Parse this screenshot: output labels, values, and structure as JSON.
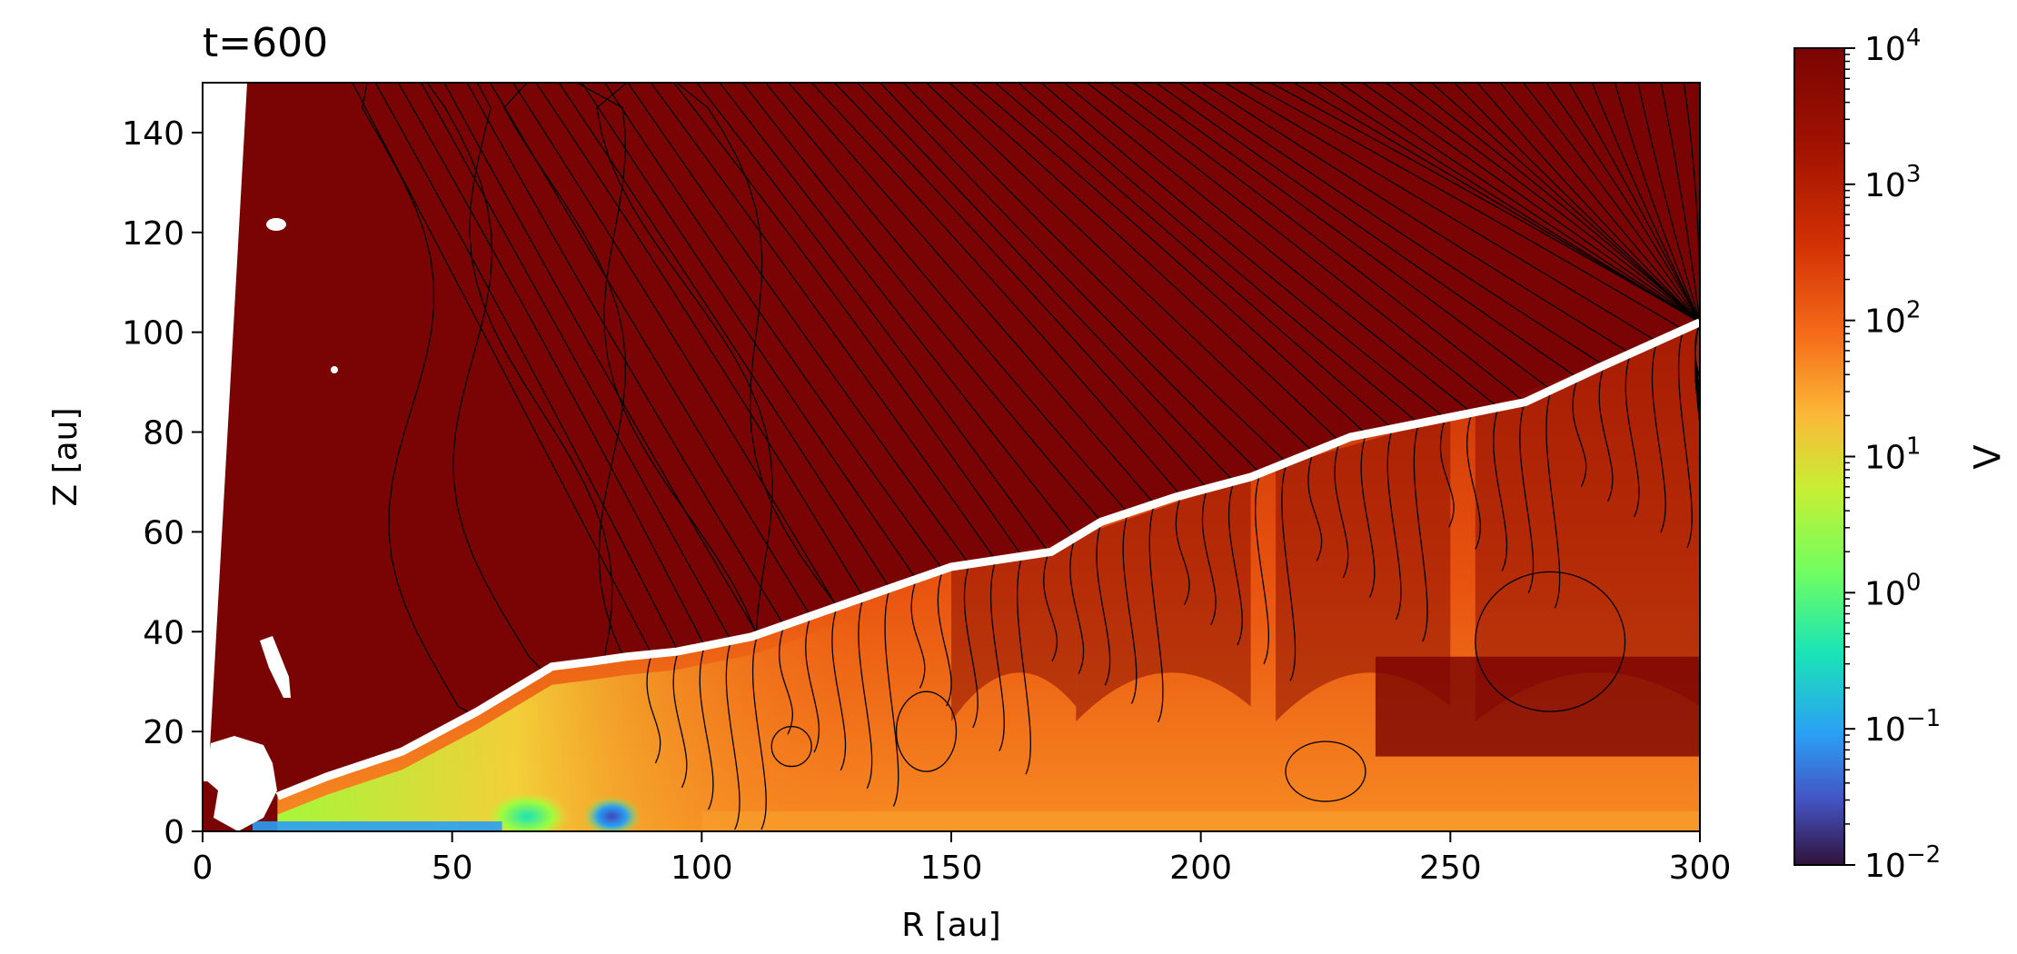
{
  "chart_data": {
    "type": "heatmap",
    "title": "t=600",
    "xlabel": "R [au]",
    "ylabel": "Z [au]",
    "xlim": [
      0,
      300
    ],
    "ylim": [
      0,
      150
    ],
    "xticks": [
      "0",
      "50",
      "100",
      "150",
      "200",
      "250",
      "300"
    ],
    "yticks": [
      "0",
      "20",
      "40",
      "60",
      "80",
      "100",
      "120",
      "140"
    ],
    "colorbar": {
      "label": "Λ",
      "scale": "log",
      "range": [
        0.01,
        10000
      ],
      "ticks": [
        {
          "base": "10",
          "exp": "4"
        },
        {
          "base": "10",
          "exp": "3"
        },
        {
          "base": "10",
          "exp": "2"
        },
        {
          "base": "10",
          "exp": "1"
        },
        {
          "base": "10",
          "exp": "0"
        },
        {
          "base": "10",
          "exp": "−1"
        },
        {
          "base": "10",
          "exp": "−2"
        }
      ],
      "colormap": "turbo"
    },
    "background_color": "#7a0403",
    "contour_color": "#000000",
    "white_boundary": {
      "description": "white band separating upper region from disk surface",
      "r": [
        15,
        25,
        40,
        55,
        70,
        78,
        85,
        95,
        110,
        130,
        150,
        170,
        180,
        195,
        210,
        230,
        250,
        265,
        280,
        300
      ],
      "z": [
        7,
        11,
        16,
        24,
        33,
        34,
        35,
        36,
        39,
        46,
        53,
        56,
        62,
        67,
        71,
        79,
        83,
        86,
        93,
        102
      ]
    },
    "low_lambda_spots": [
      {
        "r": 65,
        "z": 3,
        "value": 1
      },
      {
        "r": 82,
        "z": 3,
        "value": 0.05
      },
      {
        "r": 12,
        "z": 1,
        "value": 0.02
      }
    ]
  }
}
